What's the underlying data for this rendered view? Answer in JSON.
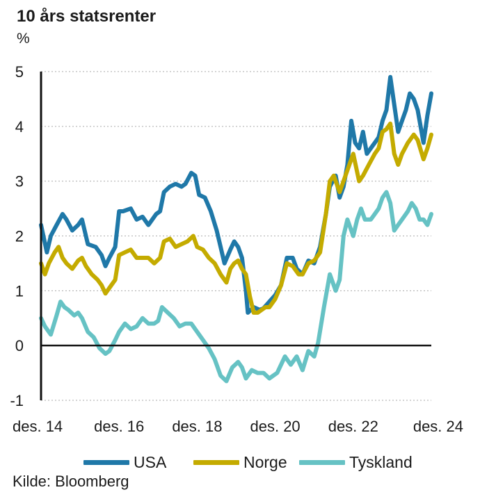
{
  "header": {
    "title": "10 års statsrenter",
    "unit": "%"
  },
  "footer": {
    "source": "Kilde: Bloomberg"
  },
  "colors": {
    "usa": "#1f78a8",
    "norge": "#c4ab00",
    "tyskland": "#66c2c4",
    "grid": "#aaaaaa",
    "axis": "#111111"
  },
  "chart_data": {
    "type": "line",
    "title": "10 års statsrenter",
    "ylabel": "%",
    "xlabel": "",
    "ylim": [
      -1,
      5
    ],
    "xlim": [
      2014.9,
      2024.9
    ],
    "yticks": [
      "-1",
      "0",
      "1",
      "2",
      "3",
      "4",
      "5"
    ],
    "xticks": [
      {
        "x": 2014.9,
        "label": "des. 14"
      },
      {
        "x": 2016.9,
        "label": "des. 16"
      },
      {
        "x": 2018.9,
        "label": "des. 18"
      },
      {
        "x": 2020.9,
        "label": "des. 20"
      },
      {
        "x": 2022.9,
        "label": "des. 22"
      },
      {
        "x": 2024.9,
        "label": "des. 24"
      }
    ],
    "grid": "horizontal-dotted",
    "legend": "bottom",
    "series": [
      {
        "name": "USA",
        "color": "#1f78a8",
        "points": [
          [
            2014.9,
            2.2
          ],
          [
            2015.05,
            1.7
          ],
          [
            2015.15,
            2.0
          ],
          [
            2015.3,
            2.2
          ],
          [
            2015.45,
            2.4
          ],
          [
            2015.55,
            2.3
          ],
          [
            2015.7,
            2.1
          ],
          [
            2015.85,
            2.2
          ],
          [
            2015.95,
            2.3
          ],
          [
            2016.1,
            1.85
          ],
          [
            2016.3,
            1.8
          ],
          [
            2016.45,
            1.65
          ],
          [
            2016.55,
            1.45
          ],
          [
            2016.65,
            1.6
          ],
          [
            2016.8,
            1.8
          ],
          [
            2016.9,
            2.45
          ],
          [
            2017.0,
            2.45
          ],
          [
            2017.2,
            2.5
          ],
          [
            2017.35,
            2.3
          ],
          [
            2017.5,
            2.35
          ],
          [
            2017.65,
            2.2
          ],
          [
            2017.75,
            2.3
          ],
          [
            2017.85,
            2.4
          ],
          [
            2017.95,
            2.45
          ],
          [
            2018.05,
            2.8
          ],
          [
            2018.2,
            2.9
          ],
          [
            2018.35,
            2.95
          ],
          [
            2018.5,
            2.9
          ],
          [
            2018.6,
            2.95
          ],
          [
            2018.75,
            3.15
          ],
          [
            2018.85,
            3.1
          ],
          [
            2018.95,
            2.75
          ],
          [
            2019.1,
            2.7
          ],
          [
            2019.25,
            2.45
          ],
          [
            2019.4,
            2.1
          ],
          [
            2019.6,
            1.5
          ],
          [
            2019.75,
            1.75
          ],
          [
            2019.85,
            1.9
          ],
          [
            2019.95,
            1.8
          ],
          [
            2020.05,
            1.6
          ],
          [
            2020.15,
            1.0
          ],
          [
            2020.2,
            0.6
          ],
          [
            2020.35,
            0.7
          ],
          [
            2020.5,
            0.65
          ],
          [
            2020.6,
            0.68
          ],
          [
            2020.75,
            0.8
          ],
          [
            2020.9,
            0.92
          ],
          [
            2021.05,
            1.1
          ],
          [
            2021.2,
            1.6
          ],
          [
            2021.35,
            1.6
          ],
          [
            2021.45,
            1.4
          ],
          [
            2021.6,
            1.3
          ],
          [
            2021.75,
            1.55
          ],
          [
            2021.9,
            1.5
          ],
          [
            2022.05,
            1.8
          ],
          [
            2022.2,
            2.4
          ],
          [
            2022.3,
            2.9
          ],
          [
            2022.45,
            3.1
          ],
          [
            2022.55,
            2.7
          ],
          [
            2022.65,
            2.9
          ],
          [
            2022.75,
            3.3
          ],
          [
            2022.85,
            4.1
          ],
          [
            2022.95,
            3.7
          ],
          [
            2023.05,
            3.6
          ],
          [
            2023.15,
            3.9
          ],
          [
            2023.25,
            3.5
          ],
          [
            2023.35,
            3.6
          ],
          [
            2023.45,
            3.7
          ],
          [
            2023.55,
            3.8
          ],
          [
            2023.65,
            4.1
          ],
          [
            2023.75,
            4.3
          ],
          [
            2023.85,
            4.9
          ],
          [
            2023.95,
            4.4
          ],
          [
            2024.05,
            3.9
          ],
          [
            2024.15,
            4.1
          ],
          [
            2024.25,
            4.3
          ],
          [
            2024.35,
            4.6
          ],
          [
            2024.45,
            4.5
          ],
          [
            2024.55,
            4.3
          ],
          [
            2024.65,
            3.9
          ],
          [
            2024.7,
            3.7
          ],
          [
            2024.8,
            4.2
          ],
          [
            2024.9,
            4.6
          ]
        ]
      },
      {
        "name": "Norge",
        "color": "#c4ab00",
        "points": [
          [
            2014.9,
            1.5
          ],
          [
            2015.0,
            1.3
          ],
          [
            2015.1,
            1.5
          ],
          [
            2015.25,
            1.7
          ],
          [
            2015.35,
            1.8
          ],
          [
            2015.45,
            1.6
          ],
          [
            2015.55,
            1.5
          ],
          [
            2015.7,
            1.4
          ],
          [
            2015.85,
            1.55
          ],
          [
            2015.95,
            1.6
          ],
          [
            2016.05,
            1.45
          ],
          [
            2016.2,
            1.3
          ],
          [
            2016.35,
            1.2
          ],
          [
            2016.45,
            1.1
          ],
          [
            2016.55,
            0.95
          ],
          [
            2016.65,
            1.05
          ],
          [
            2016.8,
            1.2
          ],
          [
            2016.9,
            1.65
          ],
          [
            2017.05,
            1.7
          ],
          [
            2017.2,
            1.75
          ],
          [
            2017.35,
            1.6
          ],
          [
            2017.5,
            1.6
          ],
          [
            2017.65,
            1.6
          ],
          [
            2017.8,
            1.5
          ],
          [
            2017.95,
            1.6
          ],
          [
            2018.05,
            1.9
          ],
          [
            2018.2,
            1.95
          ],
          [
            2018.35,
            1.8
          ],
          [
            2018.5,
            1.85
          ],
          [
            2018.65,
            1.9
          ],
          [
            2018.8,
            2.0
          ],
          [
            2018.9,
            1.8
          ],
          [
            2019.05,
            1.75
          ],
          [
            2019.2,
            1.6
          ],
          [
            2019.35,
            1.5
          ],
          [
            2019.5,
            1.3
          ],
          [
            2019.65,
            1.15
          ],
          [
            2019.75,
            1.4
          ],
          [
            2019.85,
            1.5
          ],
          [
            2019.95,
            1.55
          ],
          [
            2020.05,
            1.4
          ],
          [
            2020.15,
            1.3
          ],
          [
            2020.25,
            0.9
          ],
          [
            2020.35,
            0.6
          ],
          [
            2020.45,
            0.6
          ],
          [
            2020.55,
            0.65
          ],
          [
            2020.65,
            0.7
          ],
          [
            2020.75,
            0.7
          ],
          [
            2020.9,
            0.85
          ],
          [
            2021.05,
            1.1
          ],
          [
            2021.2,
            1.5
          ],
          [
            2021.35,
            1.45
          ],
          [
            2021.5,
            1.3
          ],
          [
            2021.6,
            1.3
          ],
          [
            2021.75,
            1.5
          ],
          [
            2021.9,
            1.55
          ],
          [
            2022.05,
            1.7
          ],
          [
            2022.2,
            2.4
          ],
          [
            2022.3,
            3.0
          ],
          [
            2022.4,
            3.1
          ],
          [
            2022.55,
            2.8
          ],
          [
            2022.65,
            3.0
          ],
          [
            2022.8,
            3.3
          ],
          [
            2022.9,
            3.5
          ],
          [
            2023.05,
            3.0
          ],
          [
            2023.15,
            3.1
          ],
          [
            2023.3,
            3.3
          ],
          [
            2023.45,
            3.5
          ],
          [
            2023.55,
            3.6
          ],
          [
            2023.65,
            3.9
          ],
          [
            2023.75,
            3.95
          ],
          [
            2023.85,
            4.05
          ],
          [
            2023.95,
            3.5
          ],
          [
            2024.05,
            3.3
          ],
          [
            2024.15,
            3.5
          ],
          [
            2024.3,
            3.7
          ],
          [
            2024.45,
            3.85
          ],
          [
            2024.55,
            3.75
          ],
          [
            2024.7,
            3.4
          ],
          [
            2024.8,
            3.6
          ],
          [
            2024.9,
            3.85
          ]
        ]
      },
      {
        "name": "Tyskland",
        "color": "#66c2c4",
        "points": [
          [
            2014.9,
            0.5
          ],
          [
            2015.0,
            0.35
          ],
          [
            2015.15,
            0.2
          ],
          [
            2015.3,
            0.55
          ],
          [
            2015.4,
            0.8
          ],
          [
            2015.5,
            0.7
          ],
          [
            2015.6,
            0.65
          ],
          [
            2015.75,
            0.55
          ],
          [
            2015.85,
            0.6
          ],
          [
            2015.95,
            0.5
          ],
          [
            2016.1,
            0.25
          ],
          [
            2016.25,
            0.15
          ],
          [
            2016.4,
            -0.05
          ],
          [
            2016.55,
            -0.15
          ],
          [
            2016.65,
            -0.1
          ],
          [
            2016.8,
            0.1
          ],
          [
            2016.9,
            0.25
          ],
          [
            2017.05,
            0.4
          ],
          [
            2017.2,
            0.3
          ],
          [
            2017.35,
            0.35
          ],
          [
            2017.5,
            0.5
          ],
          [
            2017.65,
            0.4
          ],
          [
            2017.8,
            0.4
          ],
          [
            2017.9,
            0.45
          ],
          [
            2018.0,
            0.7
          ],
          [
            2018.15,
            0.6
          ],
          [
            2018.3,
            0.5
          ],
          [
            2018.45,
            0.35
          ],
          [
            2018.6,
            0.4
          ],
          [
            2018.75,
            0.4
          ],
          [
            2018.9,
            0.25
          ],
          [
            2019.05,
            0.1
          ],
          [
            2019.2,
            -0.05
          ],
          [
            2019.35,
            -0.25
          ],
          [
            2019.5,
            -0.55
          ],
          [
            2019.65,
            -0.65
          ],
          [
            2019.8,
            -0.4
          ],
          [
            2019.95,
            -0.3
          ],
          [
            2020.05,
            -0.4
          ],
          [
            2020.15,
            -0.6
          ],
          [
            2020.3,
            -0.45
          ],
          [
            2020.45,
            -0.5
          ],
          [
            2020.6,
            -0.5
          ],
          [
            2020.75,
            -0.6
          ],
          [
            2020.85,
            -0.55
          ],
          [
            2020.95,
            -0.5
          ],
          [
            2021.05,
            -0.35
          ],
          [
            2021.15,
            -0.2
          ],
          [
            2021.3,
            -0.35
          ],
          [
            2021.45,
            -0.2
          ],
          [
            2021.6,
            -0.45
          ],
          [
            2021.75,
            -0.1
          ],
          [
            2021.9,
            -0.2
          ],
          [
            2022.0,
            0.05
          ],
          [
            2022.15,
            0.7
          ],
          [
            2022.3,
            1.3
          ],
          [
            2022.45,
            1.0
          ],
          [
            2022.55,
            1.2
          ],
          [
            2022.65,
            2.0
          ],
          [
            2022.75,
            2.3
          ],
          [
            2022.9,
            2.0
          ],
          [
            2023.0,
            2.3
          ],
          [
            2023.1,
            2.5
          ],
          [
            2023.2,
            2.3
          ],
          [
            2023.35,
            2.3
          ],
          [
            2023.45,
            2.4
          ],
          [
            2023.55,
            2.5
          ],
          [
            2023.65,
            2.7
          ],
          [
            2023.75,
            2.8
          ],
          [
            2023.85,
            2.6
          ],
          [
            2023.95,
            2.1
          ],
          [
            2024.05,
            2.2
          ],
          [
            2024.15,
            2.3
          ],
          [
            2024.3,
            2.45
          ],
          [
            2024.4,
            2.6
          ],
          [
            2024.5,
            2.5
          ],
          [
            2024.6,
            2.3
          ],
          [
            2024.7,
            2.3
          ],
          [
            2024.8,
            2.2
          ],
          [
            2024.9,
            2.4
          ]
        ]
      }
    ]
  }
}
